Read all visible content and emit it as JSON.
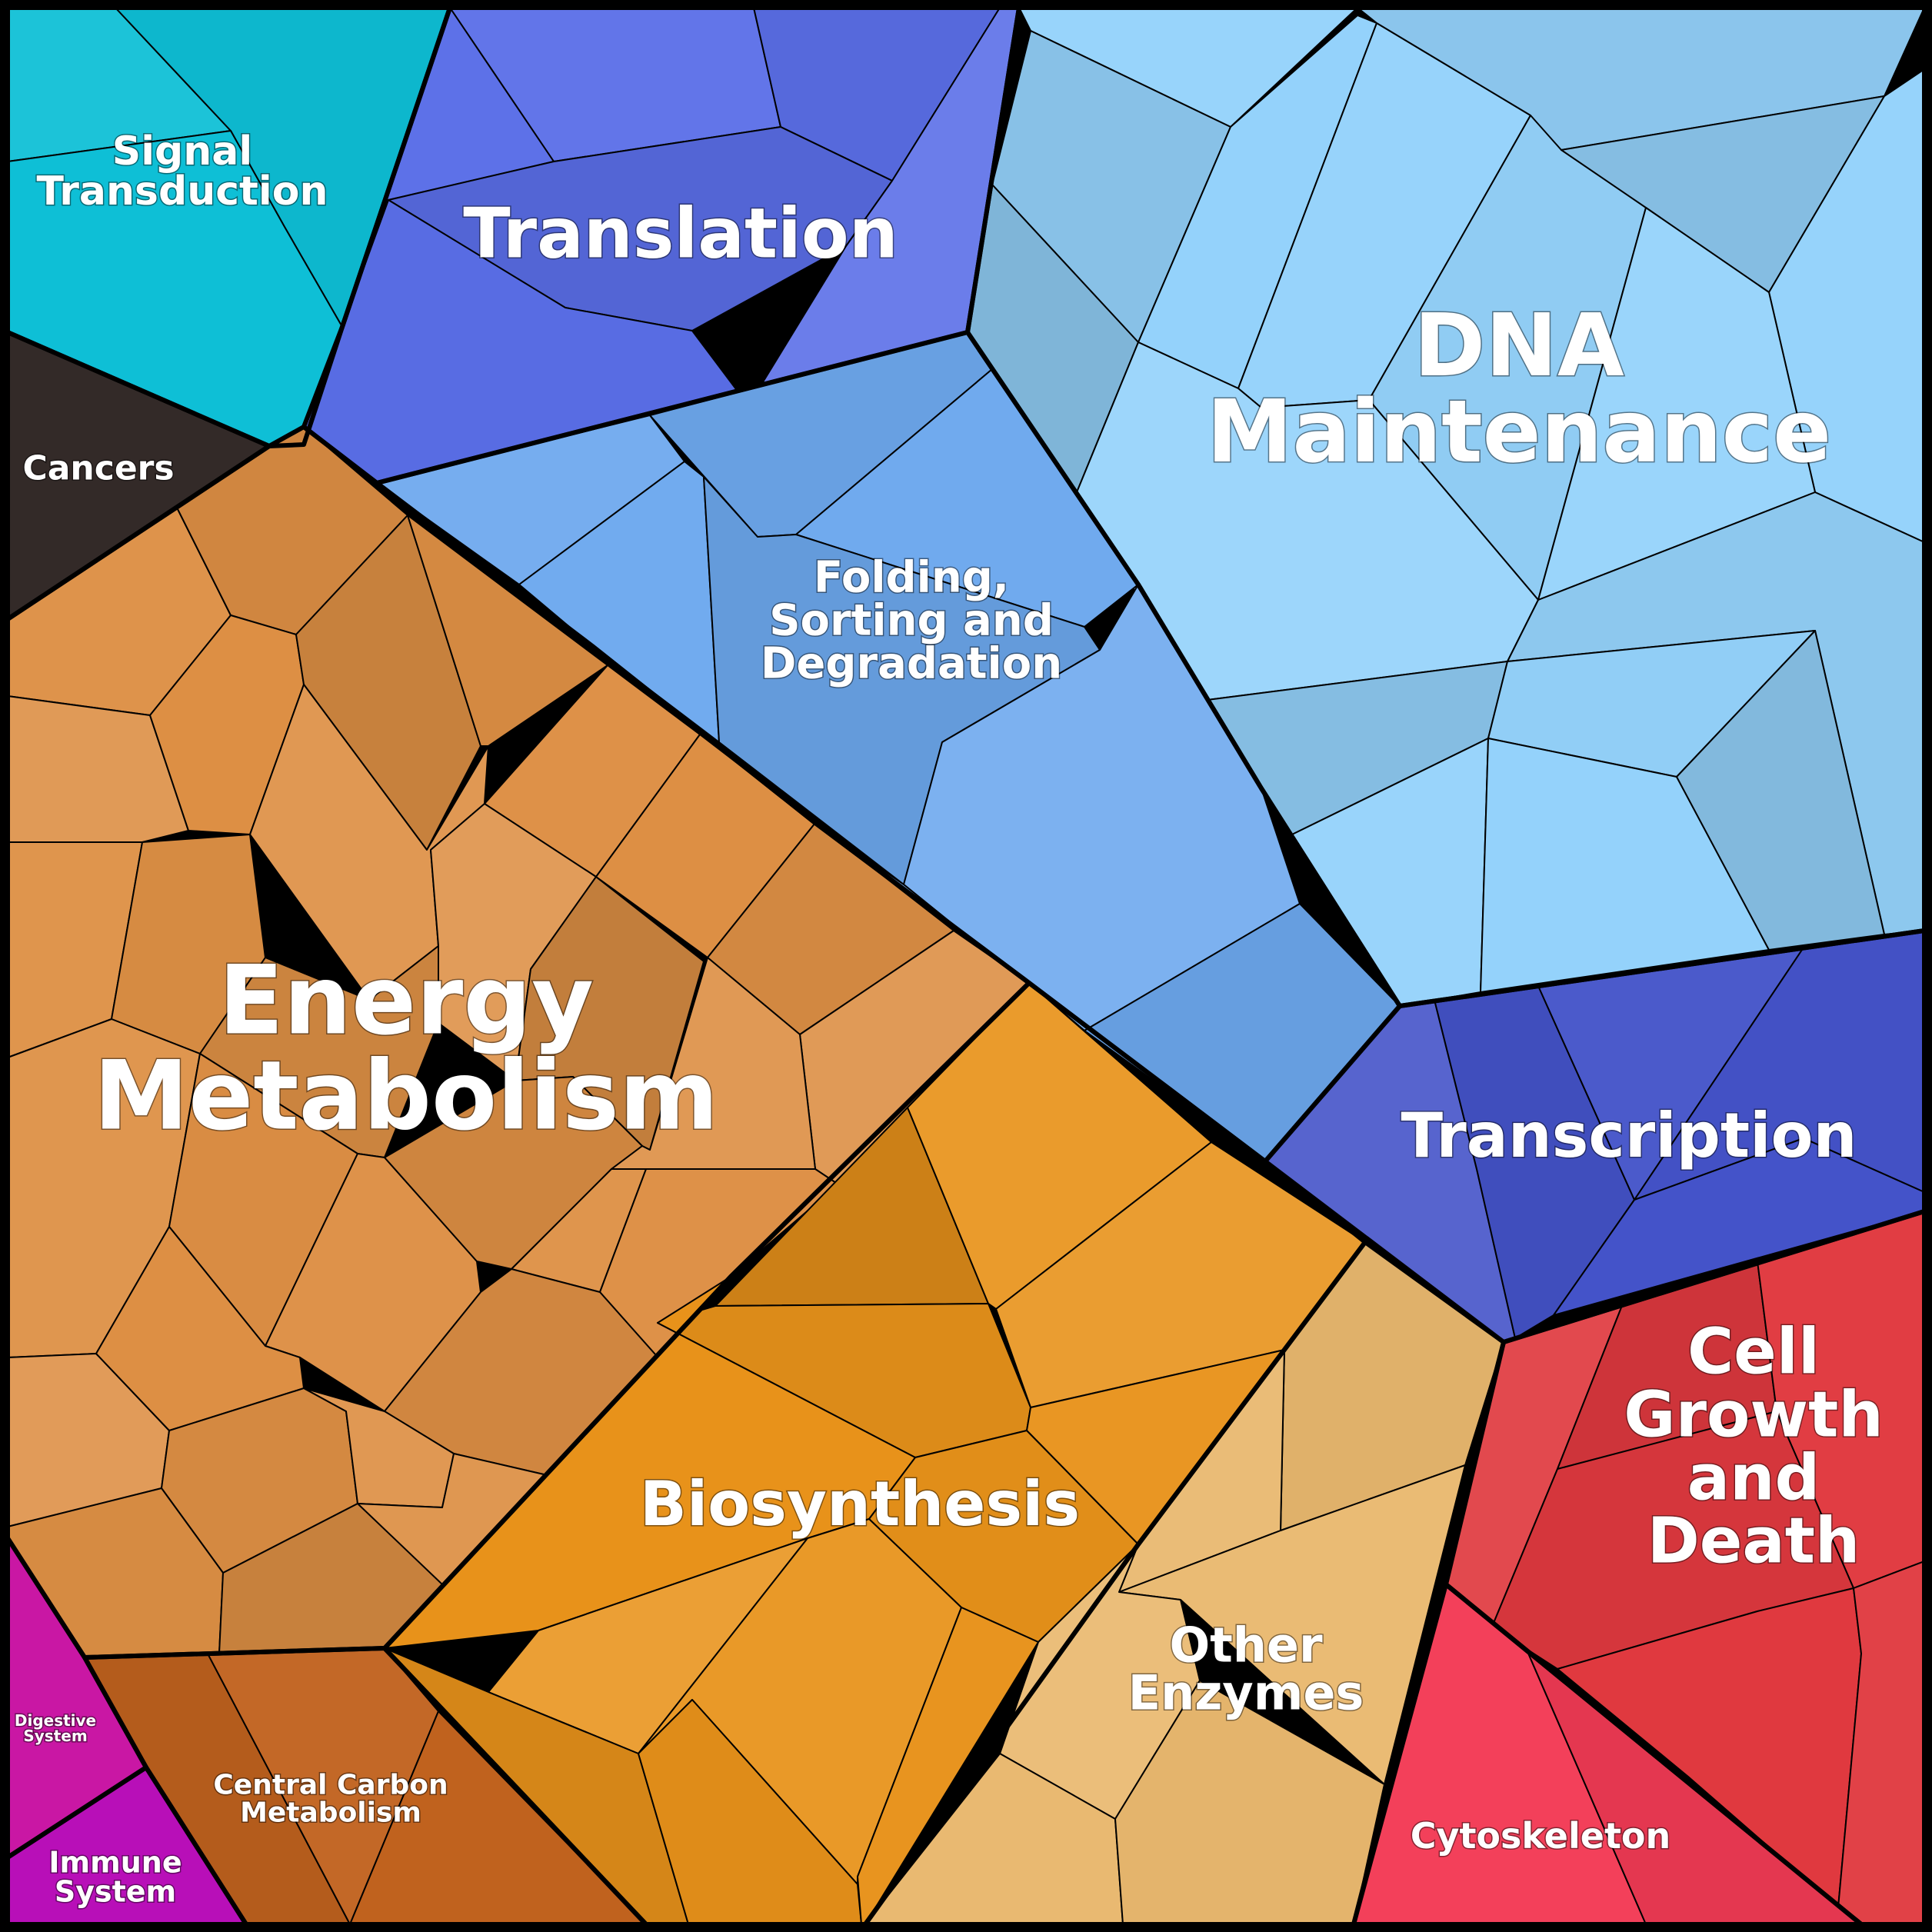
{
  "diagram": {
    "type": "voronoi-treemap",
    "categories": [
      {
        "id": "signal-transduction",
        "lines": [
          "Signal",
          "Transduction"
        ],
        "color": "#0ebfd6"
      },
      {
        "id": "translation",
        "lines": [
          "Translation"
        ],
        "color": "#5a6ee8"
      },
      {
        "id": "dna-maintenance",
        "lines": [
          "DNA",
          "Maintenance"
        ],
        "color": "#94d2fb"
      },
      {
        "id": "cancers",
        "lines": [
          "Cancers"
        ],
        "color": "#332a28"
      },
      {
        "id": "folding-sorting-degradation",
        "lines": [
          "Folding,",
          "Sorting and",
          "Degradation"
        ],
        "color": "#6da8ee"
      },
      {
        "id": "energy-metabolism",
        "lines": [
          "Energy",
          "Metabolism"
        ],
        "color": "#dd8f44"
      },
      {
        "id": "transcription",
        "lines": [
          "Transcription"
        ],
        "color": "#4453c9"
      },
      {
        "id": "biosynthesis",
        "lines": [
          "Biosynthesis"
        ],
        "color": "#e8921a"
      },
      {
        "id": "other-enzymes",
        "lines": [
          "Other",
          "Enzymes"
        ],
        "color": "#e9b86e"
      },
      {
        "id": "cell-growth-death",
        "lines": [
          "Cell",
          "Growth",
          "and",
          "Death"
        ],
        "color": "#e0393f"
      },
      {
        "id": "cytoskeleton",
        "lines": [
          "Cytoskeleton"
        ],
        "color": "#f33a55"
      },
      {
        "id": "central-carbon-metabolism",
        "lines": [
          "Central Carbon",
          "Metabolism"
        ],
        "color": "#c0621e"
      },
      {
        "id": "digestive-system",
        "lines": [
          "Digestive",
          "System"
        ],
        "color": "#c917a4"
      },
      {
        "id": "immune-system",
        "lines": [
          "Immune",
          "System"
        ],
        "color": "#b80fb8"
      }
    ]
  }
}
